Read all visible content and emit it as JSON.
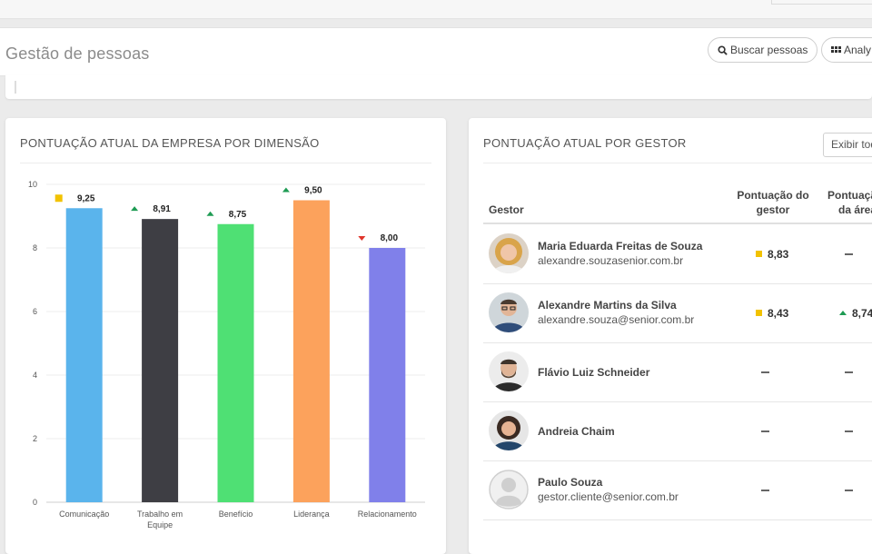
{
  "header": {
    "title": "Gestão de pessoas",
    "search_label": "Buscar pessoas",
    "search_icon": "search-icon",
    "analytics_label": "Analy",
    "analytics_icon": "grid-icon"
  },
  "left_card": {
    "title": "PONTUAÇÃO ATUAL DA EMPRESA POR DIMENSÃO"
  },
  "chart_data": {
    "type": "bar",
    "title": "PONTUAÇÃO ATUAL DA EMPRESA POR DIMENSÃO",
    "categories": [
      [
        "Comunicação"
      ],
      [
        "Trabalho em",
        "Equipe"
      ],
      [
        "Benefício"
      ],
      [
        "Liderança"
      ],
      [
        "Relacionamento"
      ]
    ],
    "values": [
      9.25,
      8.91,
      8.75,
      9.5,
      8.0
    ],
    "value_labels": [
      "9,25",
      "8,91",
      "8,75",
      "9,50",
      "8,00"
    ],
    "trend": [
      "neutral",
      "up",
      "up",
      "up",
      "down"
    ],
    "colors": [
      "#5ab4ec",
      "#3e3e44",
      "#4fe074",
      "#fca25c",
      "#8080ea"
    ],
    "trend_colors": {
      "neutral": "#f2c200",
      "up": "#1e9b53",
      "down": "#e0352b"
    },
    "yticks": [
      0,
      2,
      4,
      6,
      8,
      10
    ],
    "ylim": [
      0,
      10
    ],
    "grid": true,
    "xlabel": "",
    "ylabel": ""
  },
  "right_card": {
    "title": "PONTUAÇÃO ATUAL POR GESTOR",
    "filter_label": "Exibir tod",
    "columns": {
      "gestor": "Gestor",
      "score_gestor": [
        "Pontuação do",
        "gestor"
      ],
      "score_area": [
        "Pontuaçã",
        "da área"
      ]
    },
    "managers": [
      {
        "name": "Maria Eduarda Freitas de Souza",
        "email": "alexandre.souzasenior.com.br",
        "score": "8,83",
        "score_trend": "neutral",
        "area": "–",
        "area_trend": "none",
        "avatar": "woman-blonde"
      },
      {
        "name": "Alexandre Martins da Silva",
        "email": "alexandre.souza@senior.com.br",
        "score": "8,43",
        "score_trend": "neutral",
        "area": "8,74",
        "area_trend": "up",
        "avatar": "man-glasses"
      },
      {
        "name": "Flávio Luiz Schneider",
        "email": "",
        "score": "–",
        "score_trend": "none",
        "area": "–",
        "area_trend": "none",
        "avatar": "man-beard"
      },
      {
        "name": "Andreia Chaim",
        "email": "",
        "score": "–",
        "score_trend": "none",
        "area": "–",
        "area_trend": "none",
        "avatar": "woman-dark"
      },
      {
        "name": "Paulo Souza",
        "email": "gestor.cliente@senior.com.br",
        "score": "–",
        "score_trend": "none",
        "area": "–",
        "area_trend": "none",
        "avatar": "default-user"
      }
    ]
  }
}
